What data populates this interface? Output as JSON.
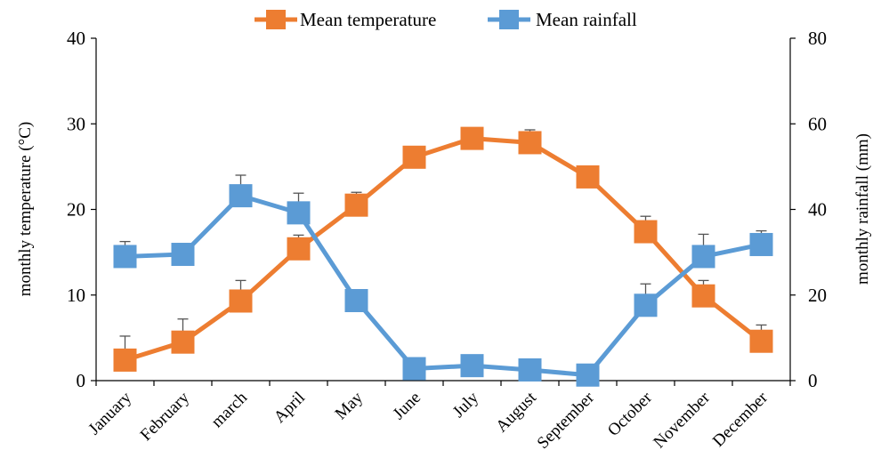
{
  "chart_data": {
    "type": "line",
    "categories": [
      "January",
      "February",
      "march",
      "April",
      "May",
      "June",
      "July",
      "August",
      "September",
      "October",
      "November",
      "December"
    ],
    "series": [
      {
        "name": "Mean temperature",
        "axis": "left",
        "color": "#ED7D31",
        "values": [
          2.4,
          4.5,
          9.3,
          15.4,
          20.5,
          26.1,
          28.3,
          27.8,
          23.8,
          17.4,
          9.9,
          4.6
        ],
        "error": [
          2.8,
          2.7,
          2.4,
          1.6,
          1.5,
          0,
          0,
          1.5,
          0,
          1.8,
          1.8,
          1.9
        ]
      },
      {
        "name": "Mean rainfall",
        "axis": "right",
        "color": "#5B9BD5",
        "values": [
          29,
          29.5,
          43.2,
          39.2,
          18.7,
          2.8,
          3.5,
          2.5,
          1.3,
          17.6,
          29,
          31.8
        ],
        "error": [
          3.5,
          2.5,
          4.8,
          4.6,
          0,
          0,
          0,
          0,
          0,
          5,
          5.2,
          3.2
        ]
      }
    ],
    "y_left": {
      "label": "monthly temperature (°C)",
      "ylim": [
        0,
        40
      ],
      "ticks": [
        "0",
        "10",
        "20",
        "30",
        "40"
      ]
    },
    "y_right": {
      "label": "monthly rainfall (mm)",
      "ylim": [
        0,
        80
      ],
      "ticks": [
        "0",
        "20",
        "40",
        "60",
        "80"
      ]
    },
    "legend_position": "top",
    "grid": false
  }
}
